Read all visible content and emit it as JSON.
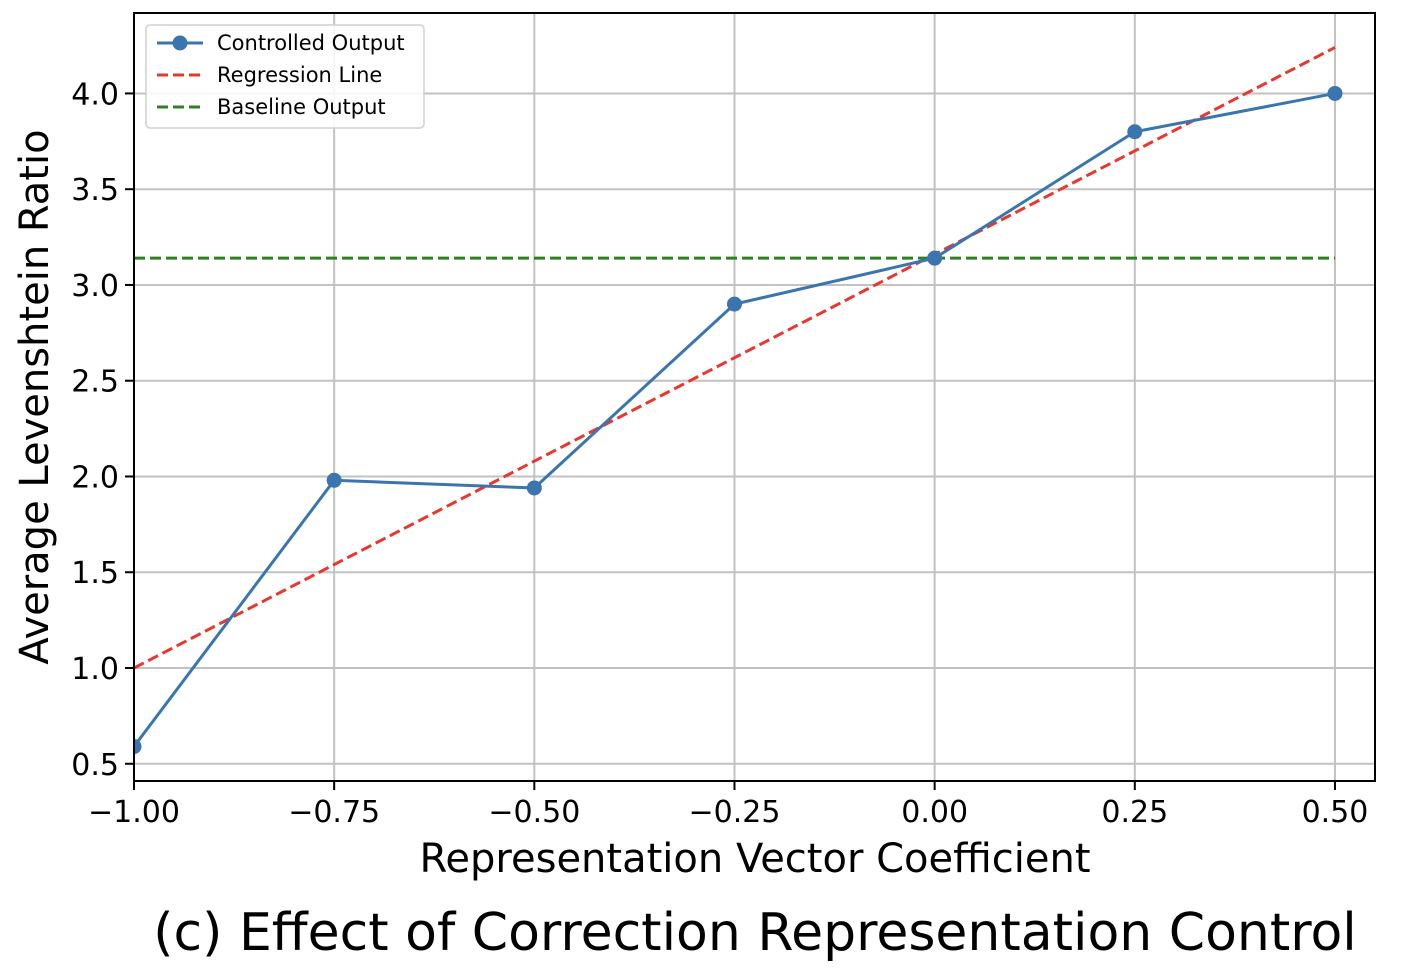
{
  "chart_data": {
    "type": "line",
    "xlabel": "Representation Vector Coefficient",
    "ylabel": "Average Levenshtein Ratio",
    "caption": "(c) Effect of Correction Representation Control",
    "xlim": [
      -1.0,
      0.55
    ],
    "ylim": [
      0.41,
      4.42
    ],
    "x_ticks": [
      -1.0,
      -0.75,
      -0.5,
      -0.25,
      0.0,
      0.25,
      0.5
    ],
    "x_tick_labels": [
      "−1.00",
      "−0.75",
      "−0.50",
      "−0.25",
      "0.00",
      "0.25",
      "0.50"
    ],
    "y_ticks": [
      0.5,
      1.0,
      1.5,
      2.0,
      2.5,
      3.0,
      3.5,
      4.0
    ],
    "y_tick_labels": [
      "0.5",
      "1.0",
      "1.5",
      "2.0",
      "2.5",
      "3.0",
      "3.5",
      "4.0"
    ],
    "grid": true,
    "legend_position": "top-left",
    "series": [
      {
        "name": "Controlled Output",
        "style": "solid-marker",
        "color": "#3a75af",
        "x": [
          -1.0,
          -0.75,
          -0.5,
          -0.25,
          0.0,
          0.25,
          0.5
        ],
        "y": [
          0.59,
          1.98,
          1.94,
          2.9,
          3.14,
          3.8,
          4.0
        ]
      },
      {
        "name": "Regression Line",
        "style": "dashed",
        "color": "#e8382e",
        "x": [
          -1.0,
          0.5
        ],
        "y": [
          1.0,
          4.24
        ]
      },
      {
        "name": "Baseline Output",
        "style": "dashed",
        "color": "#2d8123",
        "x": [
          -1.0,
          0.5
        ],
        "y": [
          3.14,
          3.14
        ]
      }
    ]
  }
}
